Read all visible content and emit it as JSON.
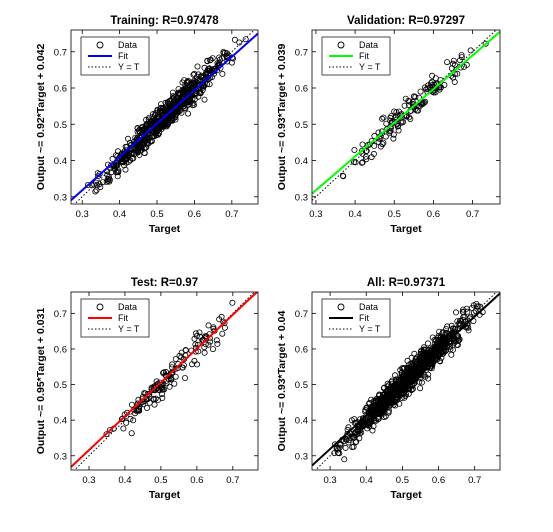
{
  "chart_data": [
    {
      "type": "scatter",
      "title": "Training: R=0.97478",
      "xlabel": "Target",
      "ylabel": "Output ~= 0.92*Target + 0.042",
      "xlim": [
        0.27,
        0.77
      ],
      "ylim": [
        0.28,
        0.76
      ],
      "xticks": [
        "0.3",
        "0.4",
        "0.5",
        "0.6",
        "0.7"
      ],
      "yticks": [
        "0.3",
        "0.4",
        "0.5",
        "0.6",
        "0.7"
      ],
      "fit": {
        "slope": 0.92,
        "intercept": 0.042,
        "color": "#0000ff"
      },
      "points_summary": {
        "n": 700,
        "spread": 0.028
      },
      "legend": {
        "placement": "top-left",
        "entries": [
          "Data",
          "Fit",
          "Y = T"
        ]
      }
    },
    {
      "type": "scatter",
      "title": "Validation: R=0.97297",
      "xlabel": "Target",
      "ylabel": "Output ~= 0.93*Target + 0.039",
      "xlim": [
        0.29,
        0.77
      ],
      "ylim": [
        0.28,
        0.76
      ],
      "xticks": [
        "0.3",
        "0.4",
        "0.5",
        "0.6",
        "0.7"
      ],
      "yticks": [
        "0.3",
        "0.4",
        "0.5",
        "0.6",
        "0.7"
      ],
      "fit": {
        "slope": 0.93,
        "intercept": 0.039,
        "color": "#00ff00"
      },
      "points_summary": {
        "n": 150,
        "spread": 0.028
      },
      "legend": {
        "placement": "top-left",
        "entries": [
          "Data",
          "Fit",
          "Y = T"
        ]
      }
    },
    {
      "type": "scatter",
      "title": "Test: R=0.97",
      "xlabel": "Target",
      "ylabel": "Output ~= 0.95*Target + 0.031",
      "xlim": [
        0.25,
        0.77
      ],
      "ylim": [
        0.26,
        0.76
      ],
      "xticks": [
        "0.3",
        "0.4",
        "0.5",
        "0.6",
        "0.7"
      ],
      "yticks": [
        "0.3",
        "0.4",
        "0.5",
        "0.6",
        "0.7"
      ],
      "fit": {
        "slope": 0.95,
        "intercept": 0.031,
        "color": "#ff0000"
      },
      "points_summary": {
        "n": 150,
        "spread": 0.028
      },
      "legend": {
        "placement": "top-left",
        "entries": [
          "Data",
          "Fit",
          "Y = T"
        ]
      }
    },
    {
      "type": "scatter",
      "title": "All: R=0.97371",
      "xlabel": "Target",
      "ylabel": "Output ~= 0.93*Target + 0.04",
      "xlim": [
        0.25,
        0.77
      ],
      "ylim": [
        0.26,
        0.76
      ],
      "xticks": [
        "0.3",
        "0.4",
        "0.5",
        "0.6",
        "0.7"
      ],
      "yticks": [
        "0.3",
        "0.4",
        "0.5",
        "0.6",
        "0.7"
      ],
      "fit": {
        "slope": 0.93,
        "intercept": 0.04,
        "color": "#000000"
      },
      "points_summary": {
        "n": 1000,
        "spread": 0.028
      },
      "legend": {
        "placement": "top-left",
        "entries": [
          "Data",
          "Fit",
          "Y = T"
        ]
      }
    }
  ]
}
